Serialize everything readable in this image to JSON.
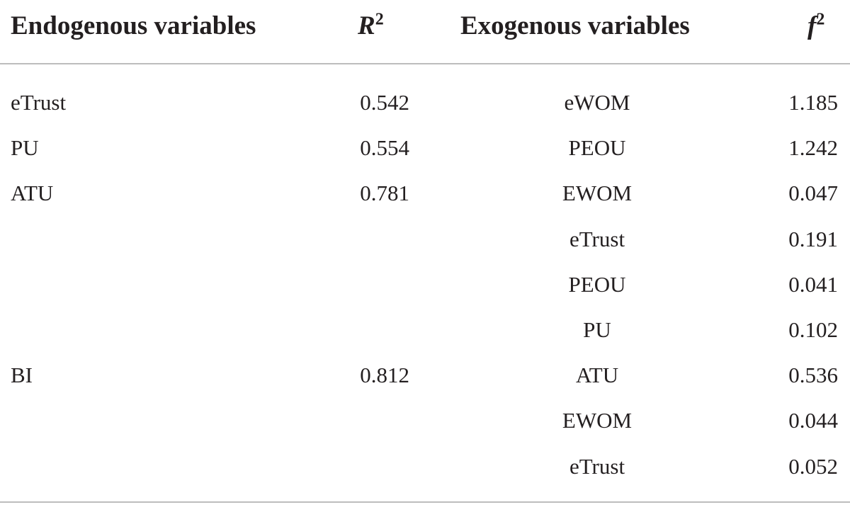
{
  "header": {
    "columns": [
      {
        "text": "Endogenous variables"
      },
      {
        "text": "R",
        "sup": "2"
      },
      {
        "text": "Exogenous variables"
      },
      {
        "text": "f",
        "sup": "2"
      }
    ]
  },
  "table": {
    "rows": [
      [
        "eTrust",
        "0.542",
        "eWOM",
        "1.185"
      ],
      [
        "PU",
        "0.554",
        "PEOU",
        "1.242"
      ],
      [
        "ATU",
        "0.781",
        "EWOM",
        "0.047"
      ],
      [
        null,
        null,
        "eTrust",
        "0.191"
      ],
      [
        null,
        null,
        "PEOU",
        "0.041"
      ],
      [
        null,
        null,
        "PU",
        "0.102"
      ],
      [
        "BI",
        "0.812",
        "ATU",
        "0.536"
      ],
      [
        null,
        null,
        "EWOM",
        "0.044"
      ],
      [
        null,
        null,
        "eTrust",
        "0.052"
      ]
    ]
  }
}
